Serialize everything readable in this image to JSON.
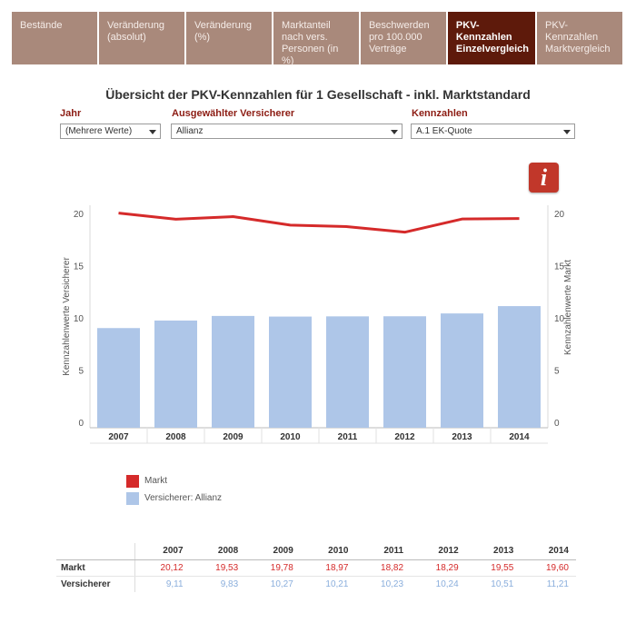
{
  "tabs": [
    {
      "label": "Bestände",
      "active": false
    },
    {
      "label": "Veränderung (absolut)",
      "active": false
    },
    {
      "label": "Veränderung (%)",
      "active": false
    },
    {
      "label": "Marktanteil  nach vers. Personen (in %)",
      "active": false
    },
    {
      "label": "Beschwerden pro 100.000 Verträge",
      "active": false
    },
    {
      "label": "PKV-Kennzahlen Einzelvergleich",
      "active": true
    },
    {
      "label": "PKV-Kennzahlen Marktvergleich",
      "active": false
    }
  ],
  "title": "Übersicht der PKV-Kennzahlen für 1 Gesellschaft - inkl. Marktstandard",
  "filters": {
    "jahr": {
      "label": "Jahr",
      "value": "(Mehrere Werte)"
    },
    "versicherer": {
      "label": "Ausgewählter Versicherer",
      "value": "Allianz"
    },
    "kennzahlen": {
      "label": "Kennzahlen",
      "value": "A.1 EK-Quote"
    }
  },
  "info_icon": {
    "glyph": "i",
    "color": "#c1372a"
  },
  "chart_data": {
    "type": "bar",
    "categories": [
      "2007",
      "2008",
      "2009",
      "2010",
      "2011",
      "2012",
      "2013",
      "2014"
    ],
    "series": [
      {
        "name": "Versicherer: Allianz",
        "kind": "bar",
        "axis": "left",
        "color": "#aec6e8",
        "values": [
          9.11,
          9.83,
          10.27,
          10.21,
          10.23,
          10.24,
          10.51,
          11.21
        ]
      },
      {
        "name": "Markt",
        "kind": "line",
        "axis": "right",
        "color": "#d52a2a",
        "values": [
          20.12,
          19.53,
          19.78,
          18.97,
          18.82,
          18.29,
          19.55,
          19.6
        ]
      }
    ],
    "ylabel_left": "Kennzahlenwerte Versicherer",
    "ylabel_right": "Kennzahlenwerte Markt",
    "ylim": [
      0,
      20
    ],
    "yticks": [
      "0",
      "5",
      "10",
      "15",
      "20"
    ],
    "grid": false,
    "legend": {
      "placement": "bottom-left",
      "items": [
        "Markt",
        "Versicherer: Allianz"
      ]
    }
  },
  "table": {
    "years": [
      "2007",
      "2008",
      "2009",
      "2010",
      "2011",
      "2012",
      "2013",
      "2014"
    ],
    "rows": [
      {
        "label": "Markt",
        "values": [
          "20,12",
          "19,53",
          "19,78",
          "18,97",
          "18,82",
          "18,29",
          "19,55",
          "19,60"
        ]
      },
      {
        "label": "Versicherer",
        "values": [
          "9,11",
          "9,83",
          "10,27",
          "10,21",
          "10,23",
          "10,24",
          "10,51",
          "11,21"
        ]
      }
    ]
  },
  "colors": {
    "accent": "#5e1a0b",
    "tab": "#a9897b",
    "label": "#8c1c13",
    "markt": "#d52a2a",
    "versicherer": "#aec6e8"
  }
}
